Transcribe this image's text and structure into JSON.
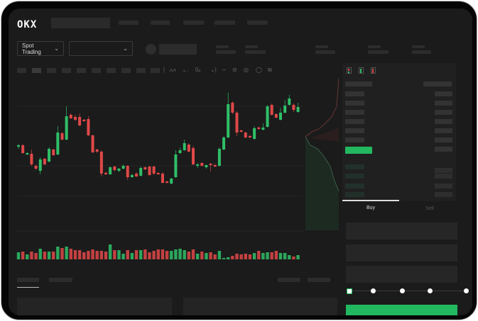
{
  "header": {
    "logo": "OKX"
  },
  "toolbar": {
    "market_type": "Spot Trading",
    "pair_select": ""
  },
  "trade_panel": {
    "tabs": [
      {
        "label": "Buy",
        "active": true
      },
      {
        "label": "Sell",
        "active": false
      }
    ],
    "leverage_slider_value": 0
  },
  "colors": {
    "up": "#2fbf68",
    "down": "#e04848",
    "background": "#1b1b1b",
    "accent": "#22b860"
  },
  "icons": [
    "chevron-down-icon",
    "orderbook-both-icon",
    "orderbook-bids-icon",
    "orderbook-asks-icon",
    "indicator-icon",
    "drawing-icon",
    "settings-icon"
  ]
}
